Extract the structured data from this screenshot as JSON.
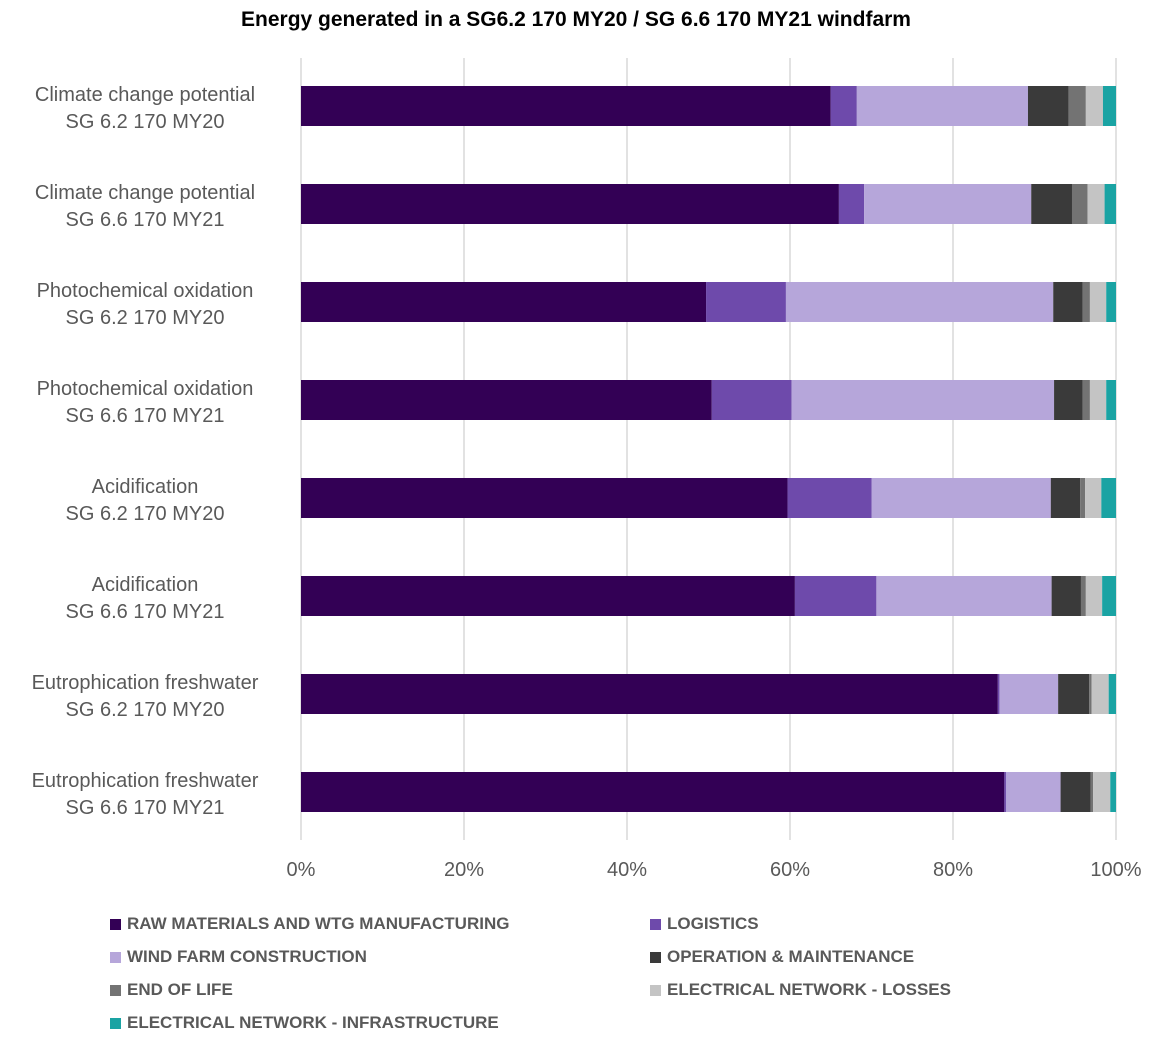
{
  "chart_data": {
    "type": "bar",
    "orientation": "horizontal",
    "stacked": "percent",
    "title": "Energy generated in a SG6.2 170 MY20 / SG 6.6 170 MY21 windfarm",
    "xlabel": "",
    "ylabel": "",
    "xlim": [
      0,
      100
    ],
    "x_ticks": [
      "0%",
      "20%",
      "40%",
      "60%",
      "80%",
      "100%"
    ],
    "grid": "vertical",
    "legend_position": "bottom",
    "categories": [
      [
        "Climate change potential",
        "SG 6.2 170 MY20"
      ],
      [
        "Climate change potential",
        "SG 6.6 170 MY21"
      ],
      [
        "Photochemical oxidation",
        "SG 6.2 170 MY20"
      ],
      [
        "Photochemical oxidation",
        "SG 6.6 170 MY21"
      ],
      [
        "Acidification",
        "SG 6.2 170 MY20"
      ],
      [
        "Acidification",
        "SG 6.6 170 MY21"
      ],
      [
        "Eutrophication freshwater",
        "SG 6.2 170 MY20"
      ],
      [
        "Eutrophication freshwater",
        "SG 6.6 170 MY21"
      ]
    ],
    "series": [
      {
        "name": "RAW MATERIALS AND WTG MANUFACTURING",
        "color": "#330055",
        "values": [
          65.0,
          66.0,
          49.7,
          50.4,
          59.7,
          60.6,
          85.5,
          86.3
        ]
      },
      {
        "name": "LOGISTICS",
        "color": "#6e4aab",
        "values": [
          3.2,
          3.1,
          9.8,
          9.8,
          10.3,
          10.0,
          0.2,
          0.2
        ]
      },
      {
        "name": "WIND FARM CONSTRUCTION",
        "color": "#b6a6da",
        "values": [
          21.0,
          20.5,
          32.8,
          32.2,
          22.0,
          21.5,
          7.2,
          6.7
        ]
      },
      {
        "name": "OPERATION & MAINTENANCE",
        "color": "#3a3a3a",
        "values": [
          5.0,
          5.0,
          3.6,
          3.5,
          3.6,
          3.6,
          3.8,
          3.7
        ]
      },
      {
        "name": "END OF LIFE",
        "color": "#737373",
        "values": [
          2.1,
          1.9,
          0.9,
          0.9,
          0.6,
          0.6,
          0.3,
          0.3
        ]
      },
      {
        "name": "ELECTRICAL NETWORK - LOSSES",
        "color": "#c4c4c4",
        "values": [
          2.1,
          2.1,
          2.0,
          2.0,
          2.0,
          2.0,
          2.1,
          2.1
        ]
      },
      {
        "name": "ELECTRICAL NETWORK - INFRASTRUCTURE",
        "color": "#1aa3a3",
        "values": [
          1.6,
          1.4,
          1.2,
          1.2,
          1.8,
          1.7,
          0.9,
          0.7
        ]
      }
    ]
  }
}
